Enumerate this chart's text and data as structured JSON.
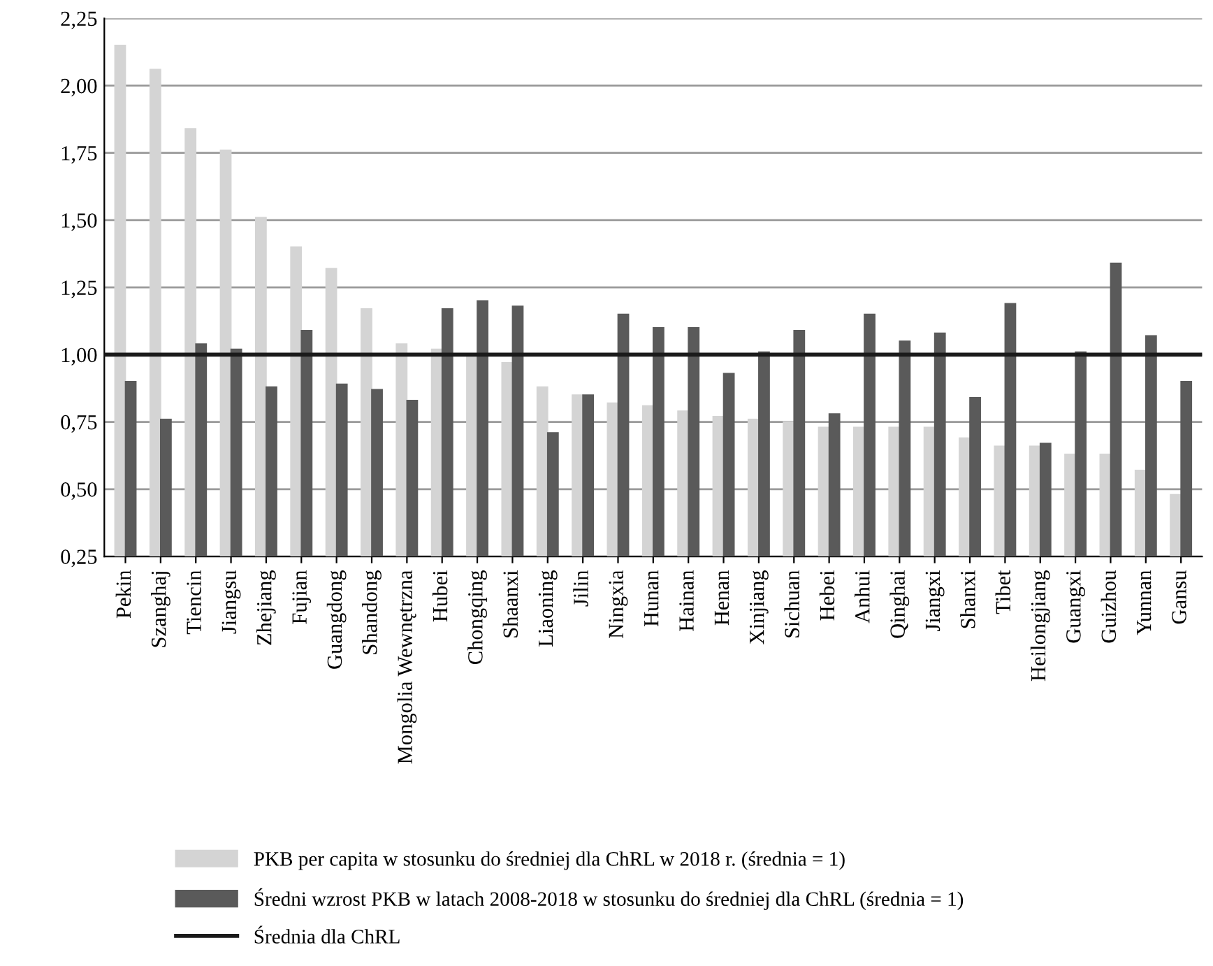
{
  "chart_data": {
    "type": "bar",
    "categories": [
      "Pekin",
      "Szanghaj",
      "Tiencin",
      "Jiangsu",
      "Zhejiang",
      "Fujian",
      "Guangdong",
      "Shandong",
      "Mongolia Wewnętrzna",
      "Hubei",
      "Chongqing",
      "Shaanxi",
      "Liaoning",
      "Jilin",
      "Ningxia",
      "Hunan",
      "Hainan",
      "Henan",
      "Xinjiang",
      "Sichuan",
      "Hebei",
      "Anhui",
      "Qinghai",
      "Jiangxi",
      "Shanxi",
      "Tibet",
      "Heilongjiang",
      "Guangxi",
      "Guizhou",
      "Yunnan",
      "Gansu"
    ],
    "series": [
      {
        "name": "PKB per capita w stosunku do średniej dla ChRL w 2018 r. (średnia = 1)",
        "color": "#d4d4d4",
        "values": [
          2.15,
          2.06,
          1.84,
          1.76,
          1.51,
          1.4,
          1.32,
          1.17,
          1.04,
          1.02,
          1.0,
          0.97,
          0.88,
          0.85,
          0.82,
          0.81,
          0.79,
          0.77,
          0.76,
          0.75,
          0.73,
          0.73,
          0.73,
          0.73,
          0.69,
          0.66,
          0.66,
          0.63,
          0.63,
          0.57,
          0.48
        ]
      },
      {
        "name": "Średni wzrost PKB w latach 2008-2018 w stosunku do średniej dla ChRL (średnia = 1)",
        "color": "#5a5a5a",
        "values": [
          0.9,
          0.76,
          1.04,
          1.02,
          0.88,
          1.09,
          0.89,
          0.87,
          0.83,
          1.17,
          1.2,
          1.18,
          0.71,
          0.85,
          1.15,
          1.1,
          1.1,
          0.93,
          1.01,
          1.09,
          0.78,
          1.15,
          1.05,
          1.08,
          0.84,
          1.19,
          0.67,
          1.01,
          1.34,
          1.07,
          0.9
        ]
      }
    ],
    "ref_lines": [
      {
        "axis": "y",
        "value": 1,
        "label": "Średnia dla ChRL",
        "color": "#1a1a1a"
      }
    ],
    "ylim": [
      0.25,
      2.25
    ],
    "yticks": [
      {
        "value": 0.25,
        "label": "0,25"
      },
      {
        "value": 0.5,
        "label": "0,50"
      },
      {
        "value": 0.75,
        "label": "0,75"
      },
      {
        "value": 1.0,
        "label": "1,00"
      },
      {
        "value": 1.25,
        "label": "1,25"
      },
      {
        "value": 1.5,
        "label": "1,50"
      },
      {
        "value": 1.75,
        "label": "1,75"
      },
      {
        "value": 2.0,
        "label": "2,00"
      },
      {
        "value": 2.25,
        "label": "2,25"
      }
    ],
    "grid": "y",
    "legend": "bottom"
  }
}
